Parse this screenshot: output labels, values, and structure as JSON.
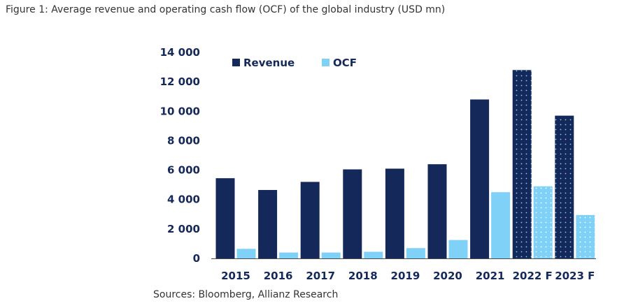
{
  "figure_title": "Figure 1: Average revenue and operating cash flow (OCF) of the global industry (USD mn)",
  "sources": "Sources: Bloomberg, Allianz Research",
  "colors": {
    "revenue": "#14285a",
    "ocf": "#7fd1f7",
    "text": "#14285a",
    "axis": "#4a4a4a",
    "dot_revenue": "#7fd1f7",
    "dot_ocf": "#ffffff"
  },
  "chart_data": {
    "type": "bar",
    "title": "",
    "xlabel": "",
    "ylabel": "",
    "ylim": [
      0,
      14000
    ],
    "yticks": [
      0,
      2000,
      4000,
      6000,
      8000,
      10000,
      12000,
      14000
    ],
    "ytick_labels": [
      "0",
      "2 000",
      "4 000",
      "6 000",
      "8 000",
      "10 000",
      "12 000",
      "14 000"
    ],
    "categories": [
      "2015",
      "2016",
      "2017",
      "2018",
      "2019",
      "2020",
      "2021",
      "2022 F",
      "2023 F"
    ],
    "forecast": [
      false,
      false,
      false,
      false,
      false,
      false,
      false,
      true,
      true
    ],
    "series": [
      {
        "name": "Revenue",
        "values": [
          5450,
          4650,
          5200,
          6050,
          6100,
          6400,
          10800,
          12800,
          9700
        ]
      },
      {
        "name": "OCF",
        "values": [
          650,
          400,
          400,
          450,
          700,
          1250,
          4500,
          4900,
          2950
        ]
      }
    ],
    "legend_position": "top-left",
    "grid": false
  }
}
